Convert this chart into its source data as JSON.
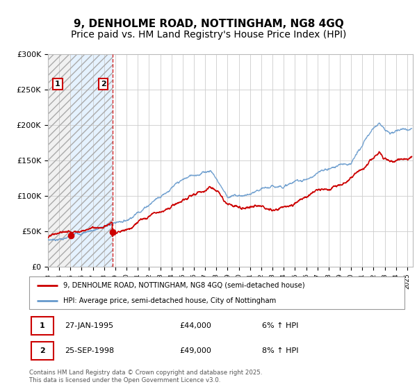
{
  "title": "9, DENHOLME ROAD, NOTTINGHAM, NG8 4GQ",
  "subtitle": "Price paid vs. HM Land Registry's House Price Index (HPI)",
  "legend_line1": "9, DENHOLME ROAD, NOTTINGHAM, NG8 4GQ (semi-detached house)",
  "legend_line2": "HPI: Average price, semi-detached house, City of Nottingham",
  "footer": "Contains HM Land Registry data © Crown copyright and database right 2025.\nThis data is licensed under the Open Government Licence v3.0.",
  "ylim": [
    0,
    300000
  ],
  "yticks": [
    0,
    50000,
    100000,
    150000,
    200000,
    250000,
    300000
  ],
  "ytick_labels": [
    "£0",
    "£50K",
    "£100K",
    "£150K",
    "£200K",
    "£250K",
    "£300K"
  ],
  "purchase1_date": 1995.07,
  "purchase1_price": 44000,
  "purchase1_label": "1",
  "purchase2_date": 1998.73,
  "purchase2_price": 49000,
  "purchase2_label": "2",
  "red_color": "#cc0000",
  "blue_color": "#6699cc",
  "bg_between_color": "#ddeeff",
  "xmin": 1993.0,
  "xmax": 2025.5,
  "grid_color": "#cccccc",
  "title_fontsize": 11,
  "subtitle_fontsize": 10,
  "axis_fontsize": 8
}
